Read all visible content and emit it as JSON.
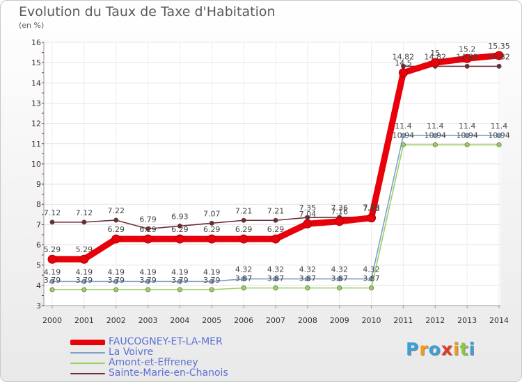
{
  "chart_data": {
    "type": "line",
    "title": "Evolution du Taux de Taxe d'Habitation",
    "ylabel": "(en %)",
    "xlabel": "",
    "ylim": [
      3,
      16
    ],
    "yticks": [
      3,
      4,
      5,
      6,
      7,
      8,
      9,
      10,
      11,
      12,
      13,
      14,
      15,
      16
    ],
    "categories": [
      "2000",
      "2001",
      "2002",
      "2003",
      "2004",
      "2005",
      "2006",
      "2007",
      "2008",
      "2009",
      "2010",
      "2011",
      "2012",
      "2013",
      "2014"
    ],
    "series": [
      {
        "name": "FAUCOGNEY-ET-LA-MER",
        "color": "#e8000b",
        "values": [
          5.29,
          5.29,
          6.29,
          6.29,
          6.29,
          6.29,
          6.29,
          6.29,
          7.04,
          7.16,
          7.33,
          14.5,
          15,
          15.2,
          15.35
        ],
        "labels": [
          "5.29",
          "5.29",
          "6.29",
          "6.29",
          "6.29",
          "6.29",
          "6.29",
          "6.29",
          "7.04",
          "7.16",
          "7.33",
          "14.5",
          "15",
          "15.2",
          "15.35"
        ]
      },
      {
        "name": "La Voivre",
        "color": "#7ca0c8",
        "values": [
          4.19,
          4.19,
          4.19,
          4.19,
          4.19,
          4.19,
          4.32,
          4.32,
          4.32,
          4.32,
          4.32,
          11.4,
          11.4,
          11.4,
          11.4
        ],
        "labels": [
          "4.19",
          "4.19",
          "4.19",
          "4.19",
          "4.19",
          "4.19",
          "4.32",
          "4.32",
          "4.32",
          "4.32",
          "4.32",
          "11.4",
          "11.4",
          "11.4",
          "11.4"
        ]
      },
      {
        "name": "Amont-et-Effreney",
        "color": "#9ad060",
        "values": [
          3.79,
          3.79,
          3.79,
          3.79,
          3.79,
          3.79,
          3.87,
          3.87,
          3.87,
          3.87,
          3.87,
          10.94,
          10.94,
          10.94,
          10.94
        ],
        "labels": [
          "3.79",
          "3.79",
          "3.79",
          "3.79",
          "3.79",
          "3.79",
          "3.87",
          "3.87",
          "3.87",
          "3.87",
          "3.87",
          "10.94",
          "10.94",
          "10.94",
          "10.94"
        ]
      },
      {
        "name": "Sainte-Marie-en-Chanois",
        "color": "#6e2b34",
        "values": [
          7.12,
          7.12,
          7.22,
          6.79,
          6.93,
          7.07,
          7.21,
          7.21,
          7.35,
          7.36,
          7.38,
          14.82,
          14.82,
          14.82,
          14.82
        ],
        "labels": [
          "7.12",
          "7.12",
          "7.22",
          "6.79",
          "6.93",
          "7.07",
          "7.21",
          "7.21",
          "7.35",
          "7.36",
          "7.38",
          "14.82",
          "14.82",
          "14.82",
          "14.82"
        ]
      }
    ]
  },
  "legend": {
    "items": [
      {
        "label": "FAUCOGNEY-ET-LA-MER",
        "color": "#e8000b"
      },
      {
        "label": "La Voivre",
        "color": "#7ca0c8"
      },
      {
        "label": "Amont-et-Effreney",
        "color": "#9ad060"
      },
      {
        "label": "Sainte-Marie-en-Chanois",
        "color": "#6e2b34"
      }
    ]
  },
  "logo": {
    "letters": [
      "P",
      "r",
      "o",
      "x",
      "i",
      "t",
      "i"
    ],
    "colors": [
      "#3aa0dc",
      "#f29a1a",
      "#3aa0dc",
      "#e23a2a",
      "#f29a1a",
      "#8dc63f",
      "#3aa0dc"
    ]
  }
}
